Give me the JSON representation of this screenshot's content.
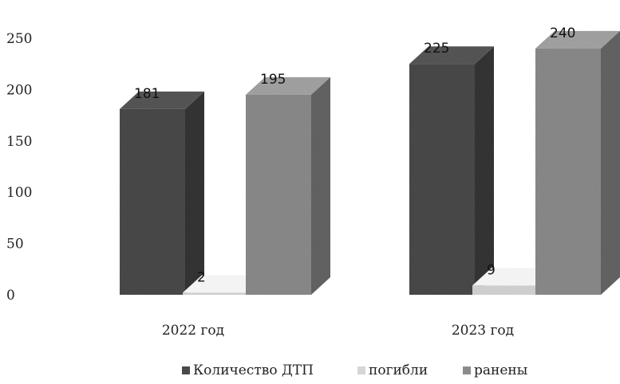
{
  "chart_data": {
    "type": "bar",
    "categories": [
      "2022 год",
      "2023 год"
    ],
    "series": [
      {
        "name": "Количество ДТП",
        "values": [
          181,
          225
        ],
        "color": "#4a4a4a"
      },
      {
        "name": "погибли",
        "values": [
          2,
          9
        ],
        "color": "#d6d6d6"
      },
      {
        "name": "ранены",
        "values": [
          195,
          240
        ],
        "color": "#8c8c8c"
      }
    ],
    "data_labels": [
      "181",
      "2",
      "195",
      "225",
      "9",
      "240"
    ],
    "yticks": [
      "0",
      "50",
      "100",
      "150",
      "200",
      "250"
    ],
    "ylim": [
      0,
      250
    ],
    "grid": false,
    "legend_position": "bottom",
    "three_d": true
  }
}
